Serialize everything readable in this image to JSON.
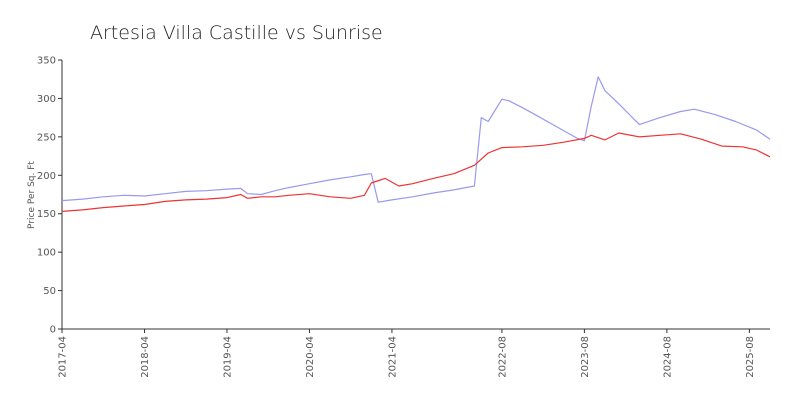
{
  "chart_data": {
    "type": "line",
    "title": "Artesia Villa Castille vs Sunrise",
    "xlabel": "",
    "ylabel": "Price Per Sq. Ft",
    "ylim": [
      0,
      350
    ],
    "yticks": [
      "0",
      "50",
      "100",
      "150",
      "200",
      "250",
      "300",
      "350"
    ],
    "xlim": [
      "2017-04",
      "2025-11"
    ],
    "xticks": [
      "2017-04",
      "2018-04",
      "2019-04",
      "2020-04",
      "2021-04",
      "2022-08",
      "2023-08",
      "2024-08",
      "2025-08"
    ],
    "grid": false,
    "legend": "none",
    "series": [
      {
        "color": "#9999ee",
        "points": [
          [
            "2017-04",
            167
          ],
          [
            "2017-07",
            169
          ],
          [
            "2017-10",
            172
          ],
          [
            "2018-01",
            174
          ],
          [
            "2018-04",
            173
          ],
          [
            "2018-07",
            176
          ],
          [
            "2018-10",
            179
          ],
          [
            "2019-01",
            180
          ],
          [
            "2019-04",
            182
          ],
          [
            "2019-06",
            183
          ],
          [
            "2019-07",
            176
          ],
          [
            "2019-09",
            175
          ],
          [
            "2019-11",
            180
          ],
          [
            "2020-01",
            184
          ],
          [
            "2020-04",
            189
          ],
          [
            "2020-07",
            194
          ],
          [
            "2020-10",
            198
          ],
          [
            "2020-12",
            201
          ],
          [
            "2021-01",
            202
          ],
          [
            "2021-02",
            165
          ],
          [
            "2021-04",
            168
          ],
          [
            "2021-07",
            172
          ],
          [
            "2021-10",
            177
          ],
          [
            "2022-01",
            181
          ],
          [
            "2022-04",
            186
          ],
          [
            "2022-05",
            275
          ],
          [
            "2022-06",
            270
          ],
          [
            "2022-08",
            299
          ],
          [
            "2022-09",
            297
          ],
          [
            "2022-11",
            288
          ],
          [
            "2023-01",
            278
          ],
          [
            "2023-04",
            263
          ],
          [
            "2023-07",
            248
          ],
          [
            "2023-08",
            245
          ],
          [
            "2023-09",
            290
          ],
          [
            "2023-10",
            328
          ],
          [
            "2023-11",
            310
          ],
          [
            "2024-01",
            293
          ],
          [
            "2024-04",
            266
          ],
          [
            "2024-07",
            275
          ],
          [
            "2024-10",
            283
          ],
          [
            "2024-12",
            286
          ],
          [
            "2025-03",
            279
          ],
          [
            "2025-06",
            270
          ],
          [
            "2025-09",
            259
          ],
          [
            "2025-11",
            247
          ]
        ]
      },
      {
        "color": "#ee3333",
        "points": [
          [
            "2017-04",
            153
          ],
          [
            "2017-07",
            155
          ],
          [
            "2017-10",
            158
          ],
          [
            "2018-01",
            160
          ],
          [
            "2018-04",
            162
          ],
          [
            "2018-07",
            166
          ],
          [
            "2018-10",
            168
          ],
          [
            "2019-01",
            169
          ],
          [
            "2019-04",
            171
          ],
          [
            "2019-06",
            175
          ],
          [
            "2019-07",
            170
          ],
          [
            "2019-09",
            172
          ],
          [
            "2019-11",
            172
          ],
          [
            "2020-01",
            174
          ],
          [
            "2020-04",
            176
          ],
          [
            "2020-07",
            172
          ],
          [
            "2020-10",
            170
          ],
          [
            "2020-12",
            174
          ],
          [
            "2021-01",
            190
          ],
          [
            "2021-03",
            196
          ],
          [
            "2021-05",
            186
          ],
          [
            "2021-07",
            189
          ],
          [
            "2021-10",
            196
          ],
          [
            "2022-01",
            202
          ],
          [
            "2022-04",
            213
          ],
          [
            "2022-06",
            229
          ],
          [
            "2022-08",
            236
          ],
          [
            "2022-11",
            237
          ],
          [
            "2023-02",
            239
          ],
          [
            "2023-05",
            243
          ],
          [
            "2023-08",
            248
          ],
          [
            "2023-09",
            252
          ],
          [
            "2023-11",
            246
          ],
          [
            "2024-01",
            255
          ],
          [
            "2024-04",
            250
          ],
          [
            "2024-07",
            252
          ],
          [
            "2024-10",
            254
          ],
          [
            "2025-01",
            247
          ],
          [
            "2025-04",
            238
          ],
          [
            "2025-07",
            237
          ],
          [
            "2025-09",
            233
          ],
          [
            "2025-11",
            224
          ]
        ]
      }
    ]
  }
}
